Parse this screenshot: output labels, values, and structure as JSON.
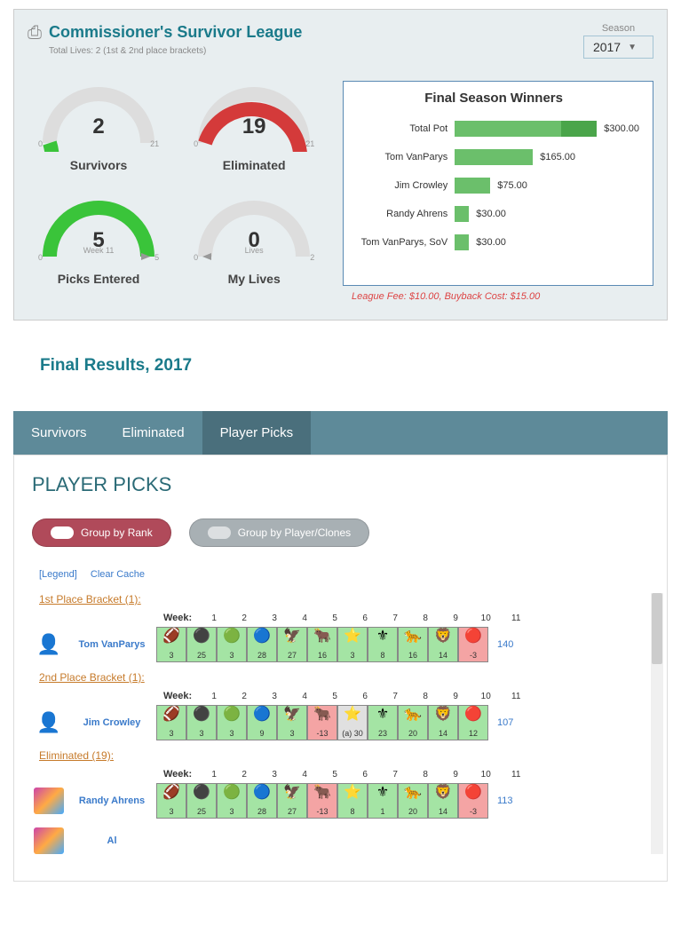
{
  "header": {
    "league_title": "Commissioner's Survivor League",
    "total_lives": "Total Lives: 2 (1st & 2nd place brackets)",
    "season_label": "Season",
    "season_value": "2017"
  },
  "gauges": [
    {
      "value": "2",
      "min": "0",
      "max": "21",
      "label": "Survivors",
      "sub": "",
      "fill": "#3ac43a",
      "pct": 0.1
    },
    {
      "value": "19",
      "min": "0",
      "max": "21",
      "label": "Eliminated",
      "sub": "",
      "fill": "#d43a3a",
      "pct": 0.9
    },
    {
      "value": "5",
      "min": "0",
      "max": "5",
      "label": "Picks Entered",
      "sub": "Week 11",
      "fill": "#3ac43a",
      "pct": 1.0
    },
    {
      "value": "0",
      "min": "0",
      "max": "2",
      "label": "My Lives",
      "sub": "Lives",
      "fill": "#3ac43a",
      "pct": 0.0
    }
  ],
  "chart": {
    "title": "Final Season Winners",
    "max_val": 300,
    "rows": [
      {
        "label": "Total Pot",
        "value": "$300.00",
        "segments": [
          {
            "w": 0.75,
            "color": "#6bbf6b"
          },
          {
            "w": 0.25,
            "color": "#4aa54a"
          }
        ]
      },
      {
        "label": "Tom VanParys",
        "value": "$165.00",
        "segments": [
          {
            "w": 0.55,
            "color": "#6bbf6b"
          }
        ]
      },
      {
        "label": "Jim Crowley",
        "value": "$75.00",
        "segments": [
          {
            "w": 0.25,
            "color": "#6bbf6b"
          }
        ]
      },
      {
        "label": "Randy Ahrens",
        "value": "$30.00",
        "segments": [
          {
            "w": 0.1,
            "color": "#6bbf6b"
          }
        ]
      },
      {
        "label": "Tom VanParys, SoV",
        "value": "$30.00",
        "segments": [
          {
            "w": 0.1,
            "color": "#6bbf6b"
          }
        ]
      }
    ],
    "fee_note": "League Fee: $10.00, Buyback Cost: $15.00"
  },
  "final_header": "Final Results, 2017",
  "tabs": [
    {
      "label": "Survivors",
      "active": false
    },
    {
      "label": "Eliminated",
      "active": false
    },
    {
      "label": "Player Picks",
      "active": true
    }
  ],
  "section_title": "PLAYER PICKS",
  "pills": [
    {
      "label": "Group by Rank",
      "active": true
    },
    {
      "label": "Group by Player/Clones",
      "active": false
    }
  ],
  "links": {
    "legend": "[Legend]",
    "clear": "Clear Cache"
  },
  "weeks_label": "Week:",
  "weeks": [
    "1",
    "2",
    "3",
    "4",
    "5",
    "6",
    "7",
    "8",
    "9",
    "10",
    "11"
  ],
  "brackets": [
    {
      "title": "1st Place Bracket (1):",
      "players": [
        {
          "name": "Tom VanParys",
          "avatar": "blue",
          "total": "140",
          "picks": [
            {
              "c": "g",
              "n": "3"
            },
            {
              "c": "g",
              "n": "25"
            },
            {
              "c": "g",
              "n": "3"
            },
            {
              "c": "g",
              "n": "28"
            },
            {
              "c": "g",
              "n": "27"
            },
            {
              "c": "g",
              "n": "16"
            },
            {
              "c": "g",
              "n": "3"
            },
            {
              "c": "g",
              "n": "8"
            },
            {
              "c": "g",
              "n": "16"
            },
            {
              "c": "g",
              "n": "14"
            },
            {
              "c": "r",
              "n": "-3"
            }
          ]
        }
      ]
    },
    {
      "title": "2nd Place Bracket (1):",
      "players": [
        {
          "name": "Jim Crowley",
          "avatar": "dark",
          "total": "107",
          "picks": [
            {
              "c": "g",
              "n": "3"
            },
            {
              "c": "g",
              "n": "3"
            },
            {
              "c": "g",
              "n": "3"
            },
            {
              "c": "g",
              "n": "9"
            },
            {
              "c": "g",
              "n": "3"
            },
            {
              "c": "r",
              "n": "-13"
            },
            {
              "c": "n",
              "n": "(a) 30"
            },
            {
              "c": "g",
              "n": "23"
            },
            {
              "c": "g",
              "n": "20"
            },
            {
              "c": "g",
              "n": "14"
            },
            {
              "c": "g",
              "n": "12"
            }
          ]
        }
      ]
    },
    {
      "title": "Eliminated (19):",
      "players": [
        {
          "name": "Randy Ahrens",
          "avatar": "photo",
          "total": "113",
          "picks": [
            {
              "c": "g",
              "n": "3"
            },
            {
              "c": "g",
              "n": "25"
            },
            {
              "c": "g",
              "n": "3"
            },
            {
              "c": "g",
              "n": "28"
            },
            {
              "c": "g",
              "n": "27"
            },
            {
              "c": "r",
              "n": "-13"
            },
            {
              "c": "g",
              "n": "8"
            },
            {
              "c": "g",
              "n": "1"
            },
            {
              "c": "g",
              "n": "20"
            },
            {
              "c": "g",
              "n": "14"
            },
            {
              "c": "r",
              "n": "-3"
            }
          ]
        },
        {
          "name": "Al",
          "avatar": "photo",
          "total": "",
          "picks": []
        }
      ]
    }
  ]
}
